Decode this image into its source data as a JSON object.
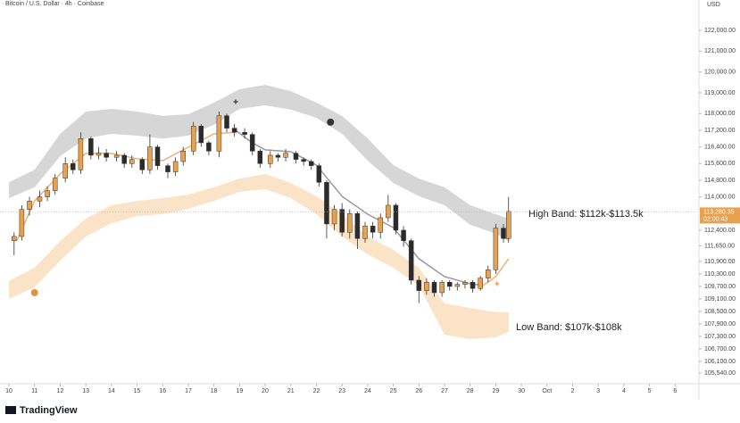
{
  "chart_data": {
    "type": "candlestick",
    "title": "Bitcoin / U.S. Dollar · 4h · Coinbase",
    "y_axis_label": "USD",
    "brand": "TradingView",
    "xlim": [
      9.65,
      36.93
    ],
    "ylim": [
      105026,
      123457
    ],
    "xticks": [
      10,
      11,
      12,
      13,
      14,
      15,
      16,
      17,
      18,
      19,
      20,
      21,
      22,
      23,
      24,
      25,
      26,
      27,
      28,
      29,
      30,
      {
        "value": 31,
        "label": "Oct"
      },
      {
        "value": 32,
        "label": "2"
      },
      {
        "value": 33,
        "label": "3"
      },
      {
        "value": 34,
        "label": "4"
      },
      {
        "value": 35,
        "label": "5"
      },
      {
        "value": 36,
        "label": "6"
      }
    ],
    "yticks": [
      {
        "value": 122000,
        "label": "122,000.00"
      },
      {
        "value": 121000,
        "label": "121,000.00"
      },
      {
        "value": 120000,
        "label": "120,000.00"
      },
      {
        "value": 119000,
        "label": "119,000.00"
      },
      {
        "value": 118000,
        "label": "118,000.00"
      },
      {
        "value": 117200,
        "label": "117,200.00"
      },
      {
        "value": 116400,
        "label": "116,400.00"
      },
      {
        "value": 115600,
        "label": "115,600.00"
      },
      {
        "value": 114800,
        "label": "114,800.00"
      },
      {
        "value": 114000,
        "label": "114,000.00"
      },
      {
        "value": 112400,
        "label": "112,400.00"
      },
      {
        "value": 111650,
        "label": "111,650.00"
      },
      {
        "value": 110900,
        "label": "110,900.00"
      },
      {
        "value": 110300,
        "label": "110,300.00"
      },
      {
        "value": 109700,
        "label": "109,700.00"
      },
      {
        "value": 109100,
        "label": "109,100.00"
      },
      {
        "value": 108500,
        "label": "108,500.00"
      },
      {
        "value": 107900,
        "label": "107,900.00"
      },
      {
        "value": 107300,
        "label": "107,300.00"
      },
      {
        "value": 106700,
        "label": "106,700.00"
      },
      {
        "value": 106100,
        "label": "106,100.00"
      },
      {
        "value": 105540,
        "label": "105,540.00"
      }
    ],
    "up_color": "#e8a14e",
    "down_color": "#2b2b2b",
    "candles": {
      "x": [
        10.2,
        10.5,
        10.8,
        11.2,
        11.5,
        11.8,
        12.2,
        12.5,
        12.8,
        13.2,
        13.5,
        13.8,
        14.2,
        14.5,
        14.8,
        15.2,
        15.5,
        15.8,
        16.2,
        16.5,
        16.8,
        17.2,
        17.5,
        17.8,
        18.2,
        18.5,
        18.8,
        19.2,
        19.5,
        19.8,
        20.2,
        20.5,
        20.8,
        21.2,
        21.5,
        21.8,
        22.1,
        22.4,
        22.7,
        23.0,
        23.3,
        23.6,
        23.9,
        24.2,
        24.5,
        24.8,
        25.1,
        25.4,
        25.7,
        26.0,
        26.3,
        26.6,
        26.9,
        27.2,
        27.5,
        27.8,
        28.1,
        28.4,
        28.7,
        29.0,
        29.3,
        29.5
      ],
      "open": [
        111900,
        112100,
        113400,
        113800,
        114000,
        114300,
        114900,
        115600,
        115300,
        116800,
        116000,
        116100,
        115900,
        116000,
        115600,
        115800,
        115300,
        116400,
        115500,
        115200,
        115700,
        116200,
        117400,
        116600,
        116200,
        117900,
        117300,
        117100,
        117000,
        116200,
        115600,
        116000,
        115900,
        116100,
        115800,
        115700,
        115500,
        114700,
        112700,
        113400,
        112300,
        113200,
        112000,
        112600,
        112300,
        113000,
        113600,
        112400,
        111900,
        110000,
        109500,
        109900,
        109400,
        109900,
        109700,
        109800,
        109900,
        109600,
        110100,
        110500,
        112500,
        112000
      ],
      "high": [
        112300,
        113600,
        114000,
        114300,
        114500,
        115100,
        115900,
        115800,
        117100,
        116900,
        116400,
        116300,
        116200,
        116100,
        116000,
        115900,
        117000,
        116500,
        115600,
        115900,
        116400,
        117600,
        117500,
        116700,
        118100,
        118000,
        117500,
        117300,
        117100,
        116300,
        116200,
        116100,
        116300,
        116200,
        115900,
        115800,
        115600,
        114800,
        113600,
        113700,
        113400,
        113300,
        112800,
        112800,
        113200,
        114100,
        113700,
        112600,
        112000,
        110200,
        110100,
        110000,
        110000,
        110000,
        109900,
        110000,
        110000,
        110200,
        110700,
        112700,
        112700,
        114000
      ],
      "low": [
        111200,
        111900,
        113100,
        113500,
        113800,
        114100,
        114700,
        115100,
        115100,
        115800,
        115800,
        115700,
        115700,
        115400,
        115400,
        115100,
        115100,
        115300,
        114900,
        115000,
        115500,
        116000,
        116400,
        116000,
        115900,
        117100,
        116900,
        116800,
        116000,
        115400,
        115400,
        115700,
        115700,
        115600,
        115500,
        115300,
        114500,
        112000,
        112400,
        112100,
        112000,
        111500,
        111800,
        112000,
        112000,
        112800,
        112200,
        111600,
        109800,
        108900,
        109300,
        109200,
        109200,
        109500,
        109500,
        109600,
        109400,
        109500,
        109900,
        110300,
        111800,
        111800
      ],
      "close": [
        112100,
        113400,
        113800,
        114000,
        114300,
        114900,
        115600,
        115300,
        116800,
        116000,
        116100,
        115900,
        116000,
        115600,
        115800,
        115300,
        116400,
        115500,
        115200,
        115700,
        116200,
        117400,
        116600,
        116200,
        117900,
        117300,
        117100,
        117000,
        116200,
        115600,
        116000,
        115900,
        116100,
        115800,
        115700,
        115500,
        114700,
        112700,
        113400,
        112300,
        113200,
        112000,
        112600,
        112300,
        113000,
        113600,
        112400,
        111900,
        110000,
        109500,
        109900,
        109400,
        109900,
        109700,
        109800,
        109900,
        109600,
        110100,
        110500,
        112500,
        112000,
        113300
      ]
    },
    "bands": [
      {
        "color": "#d6d6d6",
        "x": [
          10,
          11,
          12,
          13,
          14,
          15,
          16,
          17,
          18,
          19,
          20,
          21,
          22,
          23,
          24,
          25,
          26,
          27,
          28,
          29,
          29.5
        ],
        "top": [
          114700,
          115300,
          117030,
          118100,
          118230,
          118100,
          117890,
          117970,
          118530,
          119170,
          119380,
          119080,
          118530,
          117890,
          116810,
          115530,
          114880,
          114460,
          113600,
          113170,
          112960
        ],
        "bottom": [
          113940,
          114460,
          115956,
          116800,
          117030,
          116940,
          116800,
          116940,
          117460,
          118230,
          118400,
          118190,
          117800,
          117030,
          115740,
          114670,
          114030,
          113600,
          112660,
          112230,
          111880
        ]
      },
      {
        "color": "#fbe3c8",
        "x": [
          10,
          11,
          12,
          13,
          14,
          15,
          16,
          17,
          18,
          19,
          20,
          21,
          22,
          23,
          24,
          25,
          26,
          27,
          28,
          29,
          29.5
        ],
        "top": [
          109960,
          110600,
          111880,
          112960,
          113600,
          113810,
          113940,
          114110,
          114460,
          114880,
          115100,
          114670,
          114030,
          113170,
          112100,
          111460,
          110600,
          108880,
          108670,
          108460,
          108460
        ],
        "bottom": [
          109100,
          109660,
          110940,
          112100,
          112740,
          113080,
          113170,
          113430,
          113810,
          114240,
          114370,
          113940,
          113170,
          112100,
          111240,
          110600,
          109740,
          107380,
          107170,
          107260,
          107510
        ]
      }
    ],
    "series": [
      {
        "color": "#f0b070",
        "x": [
          10.3,
          11,
          12,
          13,
          14,
          15,
          16,
          17,
          18,
          18.8
        ],
        "values": [
          111880,
          113810,
          115100,
          116090,
          116090,
          115830,
          115740,
          116390,
          117030,
          117100
        ]
      },
      {
        "color": "#999999",
        "x": [
          18.8,
          19.5,
          20,
          21,
          22,
          23,
          24,
          25,
          26,
          27,
          28,
          28.5
        ],
        "values": [
          117240,
          116600,
          116260,
          116170,
          115530,
          114030,
          113170,
          112530,
          111030,
          110170,
          109830,
          109740
        ]
      },
      {
        "color": "#f0b070",
        "x": [
          28.5,
          29,
          29.5
        ],
        "values": [
          109740,
          110170,
          111030
        ]
      }
    ],
    "markers": [
      {
        "shape": "dot",
        "color": "#333333",
        "x": 22.55,
        "value": 117590
      },
      {
        "shape": "dot",
        "color": "#e8913a",
        "x": 11,
        "value": 109400
      },
      {
        "shape": "plus",
        "color": "#333333",
        "x": 18.85,
        "value": 118570
      },
      {
        "shape": "plus",
        "color": "#e8913a",
        "x": 29.05,
        "value": 109830
      }
    ],
    "last_price": {
      "value": 113280.35,
      "label": "113,280.35"
    },
    "countdown": "02:00:43",
    "annotations": [
      "High Band: $112k-$113.5k",
      "Low Band: $107k-$108k"
    ]
  }
}
